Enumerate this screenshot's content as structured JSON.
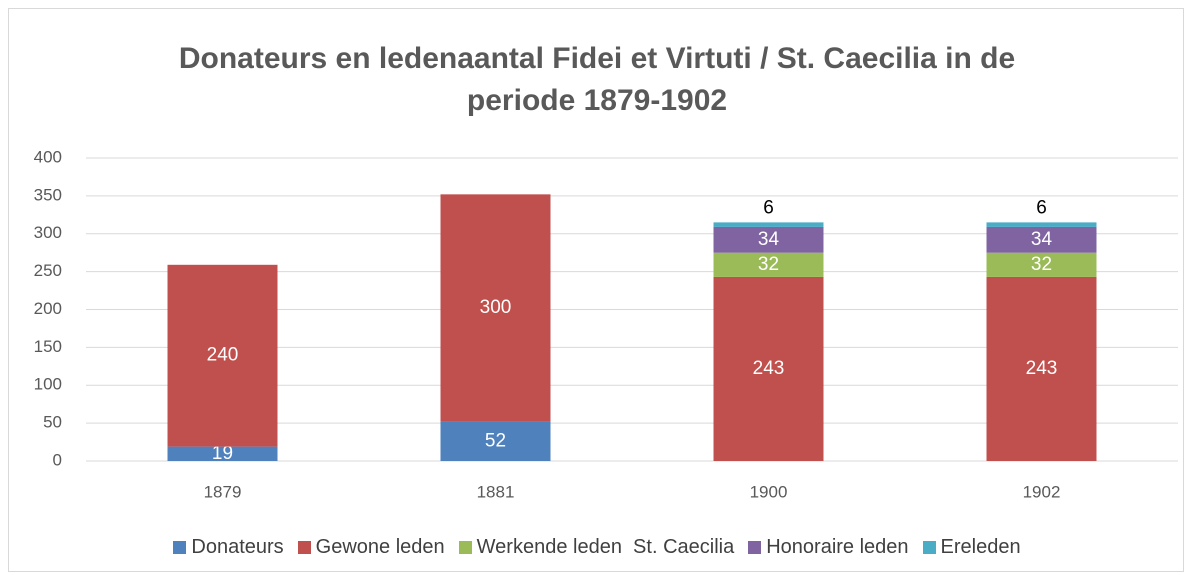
{
  "chart_data": {
    "type": "stacked_bar",
    "title": "Donateurs en ledenaantal Fidei et Virtuti / St. Caecilia in de periode 1879-1902",
    "categories": [
      "1879",
      "1881",
      "1900",
      "1902"
    ],
    "series": [
      {
        "name": "Donateurs",
        "color": "#4f81bd",
        "values": [
          19,
          52,
          null,
          null
        ]
      },
      {
        "name": "Gewone leden",
        "color": "#c0504d",
        "values": [
          240,
          300,
          243,
          243
        ]
      },
      {
        "name": "Werkende leden  St. Caecilia",
        "color": "#9bbb59",
        "values": [
          null,
          null,
          32,
          32
        ]
      },
      {
        "name": "Honoraire leden",
        "color": "#8064a2",
        "values": [
          null,
          null,
          34,
          34
        ]
      },
      {
        "name": "Ereleden",
        "color": "#4bacc6",
        "values": [
          null,
          null,
          6,
          6
        ]
      }
    ],
    "ylim": [
      0,
      400
    ],
    "yticks": [
      0,
      50,
      100,
      150,
      200,
      250,
      300,
      350,
      400
    ],
    "grid": true,
    "legend": "bottom"
  }
}
